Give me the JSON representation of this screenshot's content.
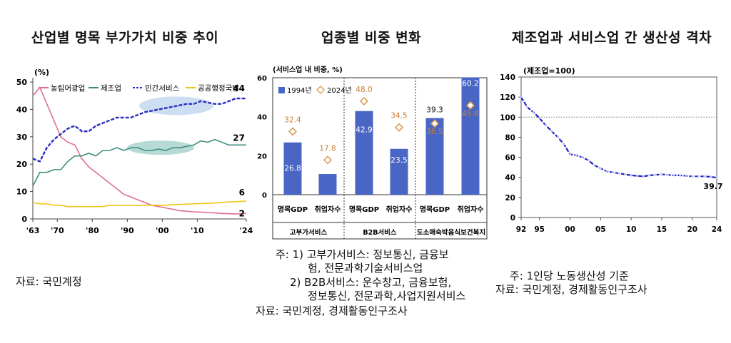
{
  "panels": [
    {
      "title": "산업별 명목 부가가치 비중 추이"
    },
    {
      "title": "업종별 비중 변화"
    },
    {
      "title": "제조업과 서비스업 간 생산성 격차"
    }
  ],
  "notes": {
    "left_source": "자료: 국민계정",
    "middle": [
      "주: 1) 고부가서비스: 정보통신, 금융보",
      "험, 전문과학기술서비스업",
      "2) B2B서비스: 운수창고, 금융보험,",
      "정보통신, 전문과학,사업지원서비스",
      "자료: 국민계정, 경제활동인구조사"
    ],
    "right": [
      "주: 1인당 노동생산성 기준",
      "자료: 국민계정, 경제활동인구조사"
    ]
  },
  "colors": {
    "agri": "#e07090",
    "manu": "#3f8f80",
    "priv": "#2a2fbf",
    "pub": "#f0c419",
    "bar": "#4a66c4",
    "diamond": "#d89848",
    "diamond_text": "#c8803a",
    "line3": "#1f1fc0"
  },
  "chart_data": [
    {
      "type": "line",
      "title": "산업별 명목 부가가치 비중 추이",
      "ylabel": "(%)",
      "ylim": [
        0,
        50
      ],
      "yticks": [
        0,
        10,
        20,
        30,
        40,
        50
      ],
      "xlim": [
        1963,
        2024
      ],
      "xtick_labels": [
        "'63",
        "'70",
        "'80",
        "'90",
        "'00",
        "'10",
        "'24"
      ],
      "xtick_values": [
        1963,
        1970,
        1980,
        1990,
        2000,
        2010,
        2024
      ],
      "grid": false,
      "legend": "top",
      "series": [
        {
          "name": "농림어광업",
          "x": [
            1963,
            1965,
            1967,
            1969,
            1971,
            1973,
            1975,
            1977,
            1979,
            1981,
            1983,
            1985,
            1987,
            1989,
            1991,
            1993,
            1995,
            1997,
            1999,
            2001,
            2003,
            2005,
            2007,
            2009,
            2011,
            2013,
            2015,
            2017,
            2019,
            2021,
            2024
          ],
          "values": [
            45,
            48,
            42,
            36,
            30,
            28,
            27,
            22,
            19,
            17,
            15,
            13,
            11,
            9,
            8,
            7,
            6,
            5,
            4.5,
            4,
            3.5,
            3,
            2.8,
            2.6,
            2.5,
            2.3,
            2.2,
            2,
            1.9,
            1.8,
            2
          ],
          "end_label": "2"
        },
        {
          "name": "제조업",
          "x": [
            1963,
            1965,
            1967,
            1969,
            1971,
            1973,
            1975,
            1977,
            1979,
            1981,
            1983,
            1985,
            1987,
            1989,
            1991,
            1993,
            1995,
            1997,
            1999,
            2001,
            2003,
            2005,
            2007,
            2009,
            2011,
            2013,
            2015,
            2017,
            2019,
            2021,
            2024
          ],
          "values": [
            12,
            17,
            17,
            18,
            18,
            21,
            23,
            23,
            24,
            23,
            25,
            25,
            26,
            25,
            26,
            26,
            25,
            25,
            25.5,
            25,
            26,
            26,
            26.5,
            27,
            28.5,
            28,
            29,
            28,
            27,
            27,
            27
          ],
          "end_label": "27"
        },
        {
          "name": "민간서비스",
          "x": [
            1963,
            1965,
            1967,
            1969,
            1971,
            1973,
            1975,
            1977,
            1979,
            1981,
            1983,
            1985,
            1987,
            1989,
            1991,
            1993,
            1995,
            1997,
            1999,
            2001,
            2003,
            2005,
            2007,
            2009,
            2011,
            2013,
            2015,
            2017,
            2019,
            2021,
            2024
          ],
          "values": [
            22,
            21,
            26,
            29,
            31,
            33,
            34,
            32,
            32,
            34,
            35,
            36,
            37,
            37,
            37,
            38,
            39,
            39.5,
            40,
            40.5,
            41,
            41.5,
            42,
            42,
            43,
            42.5,
            42,
            42,
            43,
            44,
            44
          ],
          "end_label": "44"
        },
        {
          "name": "공공행정국방",
          "x": [
            1963,
            1965,
            1967,
            1969,
            1971,
            1973,
            1975,
            1977,
            1979,
            1981,
            1983,
            1985,
            1987,
            1989,
            1991,
            1993,
            1995,
            1997,
            1999,
            2001,
            2003,
            2005,
            2007,
            2009,
            2011,
            2013,
            2015,
            2017,
            2019,
            2021,
            2024
          ],
          "values": [
            6,
            5.5,
            5.5,
            5,
            5,
            4.5,
            4.5,
            4.5,
            4.5,
            4.5,
            4.5,
            5,
            5,
            5,
            5,
            5,
            5,
            5,
            5,
            5,
            5.2,
            5.3,
            5.4,
            5.5,
            5.6,
            5.7,
            5.8,
            6,
            6.2,
            6.3,
            6.5
          ],
          "end_label": "6"
        }
      ]
    },
    {
      "type": "bar",
      "title": "업종별 비중 변화",
      "ylabel": "(서비스업 내 비중, %)",
      "ylim": [
        0,
        60
      ],
      "yticks": [
        0,
        20,
        40,
        60
      ],
      "legend": "top",
      "categories": [
        "명목GDP",
        "취업자수",
        "명목GDP",
        "취업자수",
        "명목GDP",
        "취업자수"
      ],
      "groups": [
        "고부가서비스",
        "B2B서비스",
        "도소매숙박음식보건복지"
      ],
      "series": [
        {
          "name": "1994년",
          "values": [
            26.8,
            10.6,
            42.9,
            23.5,
            39.3,
            60.2
          ]
        },
        {
          "name": "2024년",
          "values": [
            32.4,
            17.8,
            48.0,
            34.5,
            36.5,
            45.8
          ]
        }
      ]
    },
    {
      "type": "line",
      "title": "제조업과 서비스업 간 생산성 격차",
      "ylabel": "(제조업=100)",
      "ylim": [
        0,
        140
      ],
      "yticks": [
        0,
        20,
        40,
        60,
        80,
        100,
        120,
        140
      ],
      "xtick_labels": [
        "92",
        "95",
        "00",
        "05",
        "10",
        "15",
        "20",
        "24"
      ],
      "xtick_values": [
        1992,
        1995,
        2000,
        2005,
        2010,
        2015,
        2020,
        2024
      ],
      "reference_line": 100,
      "grid": false,
      "series": [
        {
          "x": [
            1992,
            1993,
            1994,
            1995,
            1996,
            1997,
            1998,
            1999,
            2000,
            2001,
            2002,
            2003,
            2004,
            2005,
            2006,
            2007,
            2008,
            2009,
            2010,
            2011,
            2012,
            2013,
            2014,
            2015,
            2016,
            2017,
            2018,
            2019,
            2020,
            2021,
            2022,
            2023,
            2024
          ],
          "values": [
            120,
            110,
            105,
            99,
            92,
            86,
            80,
            73,
            63,
            62,
            60,
            57,
            52,
            49,
            46,
            45,
            44,
            43,
            42,
            41.5,
            41,
            42,
            42.5,
            43,
            42.5,
            42,
            42,
            41.5,
            41,
            41,
            41,
            40.5,
            39.7
          ],
          "end_label": "39.7"
        }
      ]
    }
  ]
}
